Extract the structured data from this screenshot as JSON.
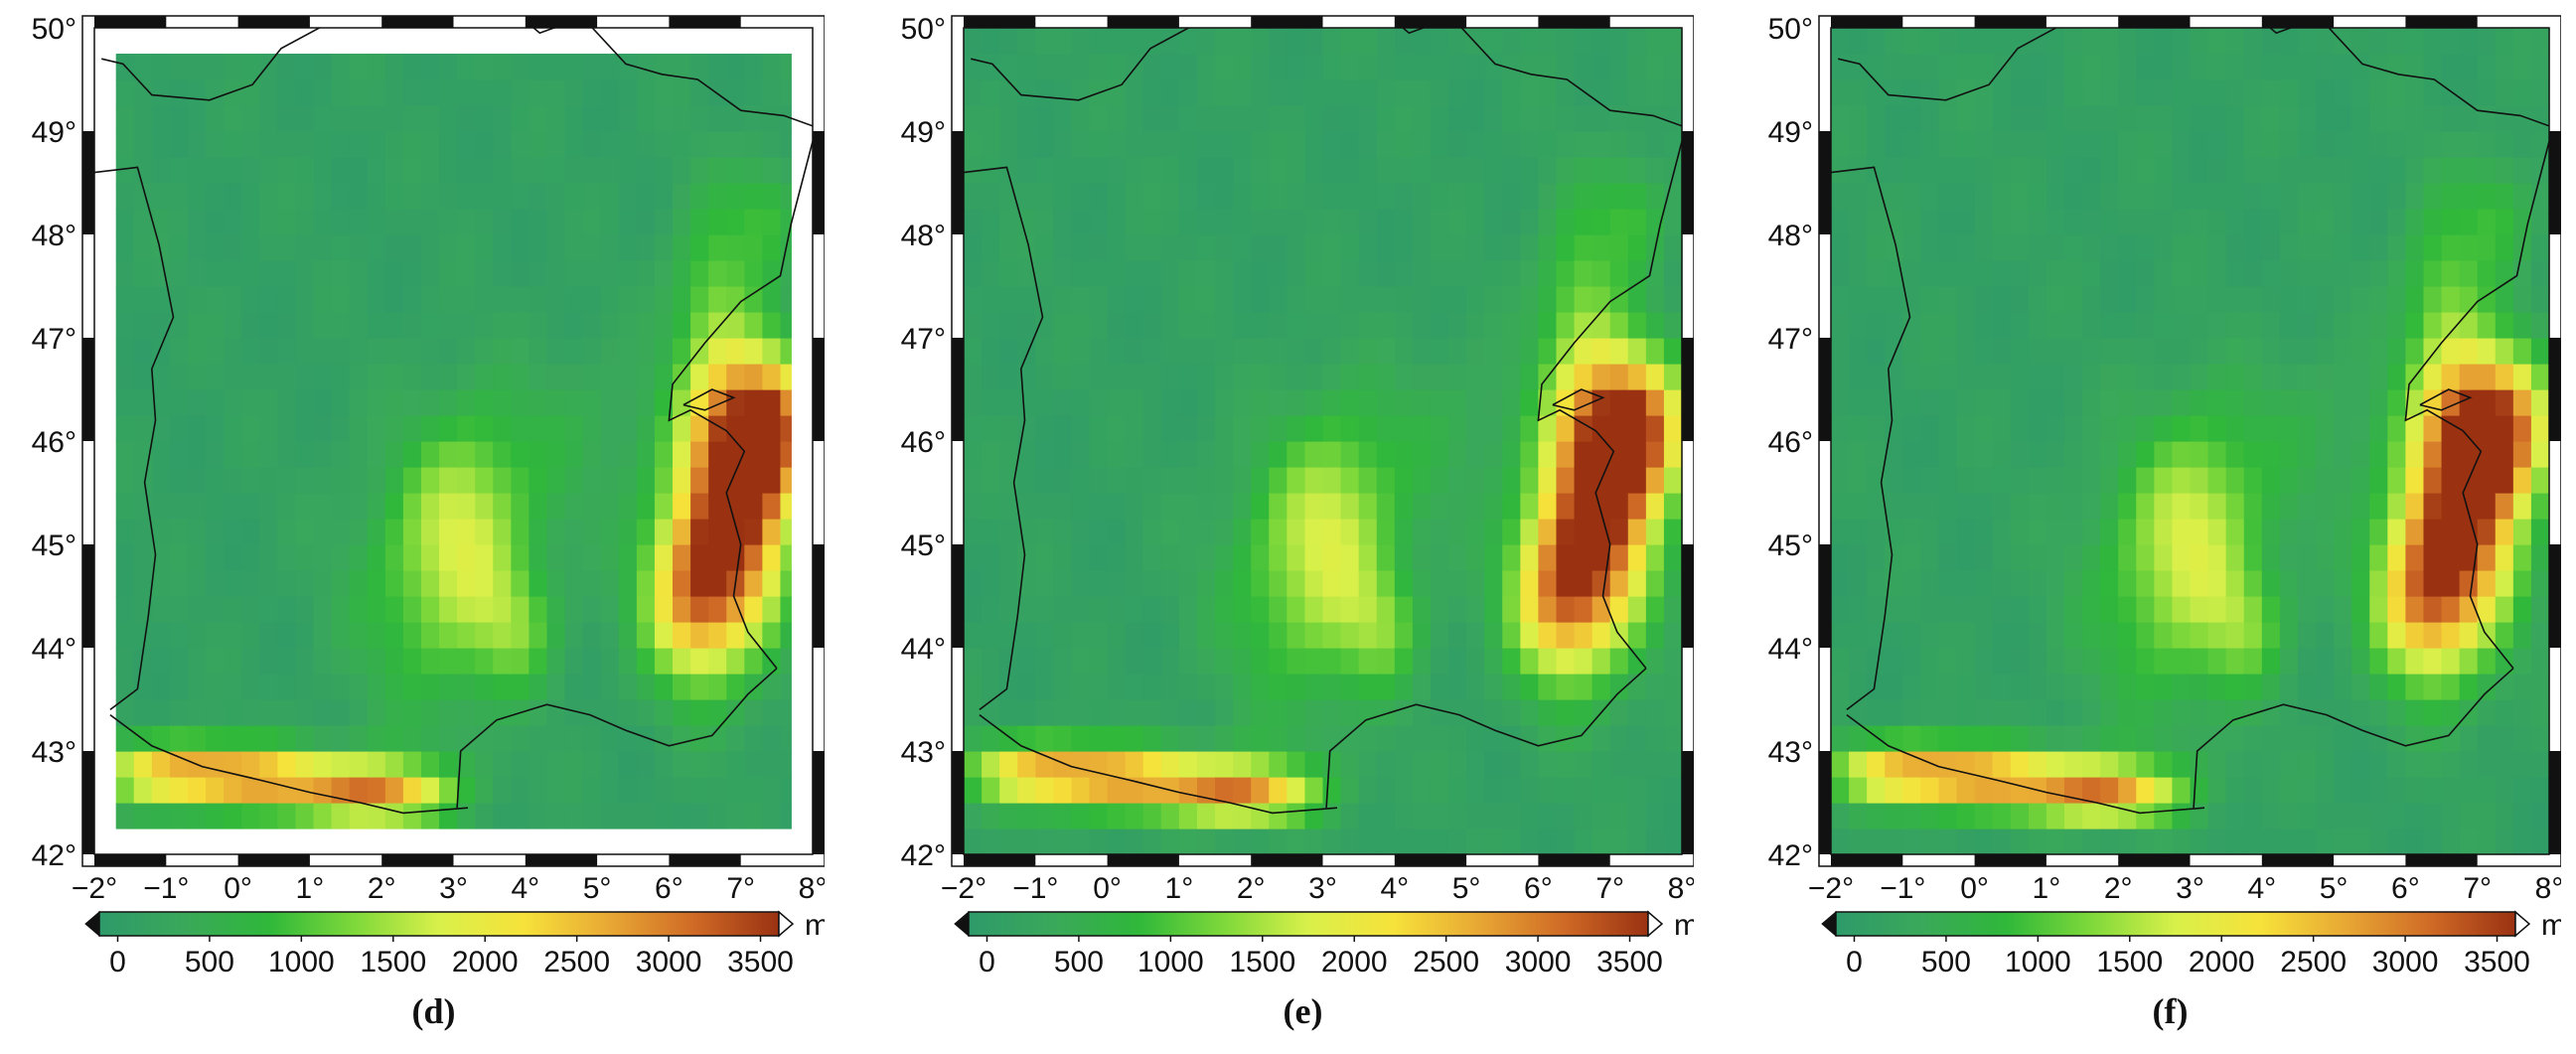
{
  "axes": {
    "lon_labels": [
      "−2°",
      "−1°",
      "0°",
      "1°",
      "2°",
      "3°",
      "4°",
      "5°",
      "6°",
      "7°",
      "8°"
    ],
    "lat_labels": [
      "42°",
      "43°",
      "44°",
      "45°",
      "46°",
      "47°",
      "48°",
      "49°",
      "50°"
    ],
    "lon_range": [
      -2,
      8
    ],
    "lat_range": [
      42,
      50
    ]
  },
  "colorbar": {
    "ticks": [
      "0",
      "500",
      "1000",
      "1500",
      "2000",
      "2500",
      "3000",
      "3500"
    ],
    "range": [
      -100,
      3600
    ],
    "unit": "m",
    "colors": [
      "#2e9a6a",
      "#3aa85a",
      "#2fb83a",
      "#7ed83a",
      "#d9f04a",
      "#f6e23a",
      "#e8a834",
      "#cf6a26",
      "#9a3212"
    ]
  },
  "panels": [
    {
      "id": "d",
      "label": "(d)",
      "data_window": {
        "lon": [
          -1.7,
          7.7
        ],
        "lat": [
          42.25,
          49.75
        ]
      }
    },
    {
      "id": "e",
      "label": "(e)",
      "data_window": {
        "lon": [
          -2,
          8
        ],
        "lat": [
          42,
          50
        ]
      }
    },
    {
      "id": "f",
      "label": "(f)",
      "data_window": {
        "lon": [
          -2,
          8
        ],
        "lat": [
          42,
          50
        ]
      }
    }
  ]
}
